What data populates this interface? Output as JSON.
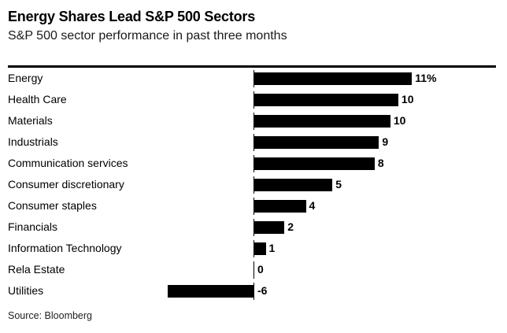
{
  "header": {
    "title": "Energy Shares Lead S&P 500 Sectors",
    "subtitle": "S&P 500 sector performance in past three months"
  },
  "footer": {
    "source": "Source: Bloomberg"
  },
  "chart_data": {
    "type": "bar",
    "orientation": "horizontal",
    "title": "Energy Shares Lead S&P 500 Sectors",
    "subtitle": "S&P 500 sector performance in past three months",
    "source": "Source: Bloomberg",
    "categories": [
      "Energy",
      "Health Care",
      "Materials",
      "Industrials",
      "Communication services",
      "Consumer discretionary",
      "Consumer staples",
      "Financials",
      "Information Technology",
      "Rela Estate",
      "Utilities"
    ],
    "values": [
      11,
      10,
      10,
      9,
      8,
      5,
      4,
      2,
      1,
      0,
      -6
    ],
    "value_labels": [
      "11%",
      "10",
      "10",
      "9",
      "8",
      "5",
      "4",
      "2",
      "1",
      "0",
      "-6"
    ],
    "values_render": [
      11,
      10.05,
      9.5,
      8.7,
      8.4,
      5.45,
      3.6,
      2.1,
      0.8,
      0,
      -6
    ],
    "unit": "percent",
    "xlim": [
      -6,
      11.5
    ],
    "grid": false,
    "legend": false,
    "bar_color": "#000000",
    "background_color": "#ffffff",
    "text_color": "#000000"
  }
}
